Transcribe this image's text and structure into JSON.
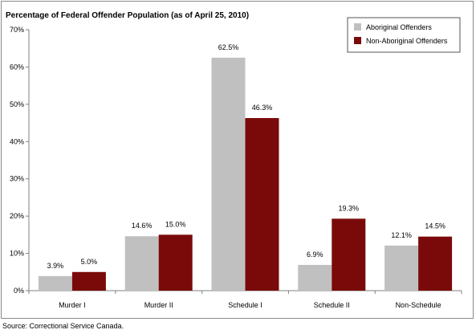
{
  "chart_data": {
    "type": "bar",
    "title": "Percentage of Federal Offender Population (as of April 25, 2010)",
    "categories": [
      "Murder I",
      "Murder II",
      "Schedule I",
      "Schedule II",
      "Non-Schedule"
    ],
    "series": [
      {
        "name": "Aboriginal Offenders",
        "values": [
          3.9,
          14.6,
          62.5,
          6.9,
          12.1
        ],
        "labels": [
          "3.9%",
          "14.6%",
          "62.5%",
          "6.9%",
          "12.1%"
        ],
        "color": "#c0c0c0"
      },
      {
        "name": "Non-Aboriginal Offenders",
        "values": [
          5.0,
          15.0,
          46.3,
          19.3,
          14.5
        ],
        "labels": [
          "5.0%",
          "15.0%",
          "46.3%",
          "19.3%",
          "14.5%"
        ],
        "color": "#7a0a0a"
      }
    ],
    "ylim": [
      0,
      70
    ],
    "yticks": [
      0,
      10,
      20,
      30,
      40,
      50,
      60,
      70
    ],
    "ytick_labels": [
      "0%",
      "10%",
      "20%",
      "30%",
      "40%",
      "50%",
      "60%",
      "70%"
    ],
    "xlabel": "",
    "ylabel": "",
    "grid": false,
    "legend_position": "top-right"
  },
  "source_note": "Source:  Correctional Service Canada."
}
